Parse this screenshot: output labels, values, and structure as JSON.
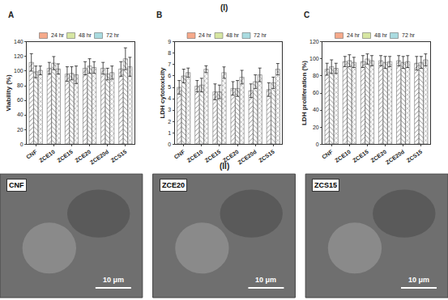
{
  "section_labels": [
    "(I)",
    "(II)"
  ],
  "chart_data": [
    {
      "type": "bar",
      "title": "A",
      "y_label": "Viability (%)",
      "categories": [
        "CNF",
        "ZCE10",
        "ZCE15",
        "ZCE20",
        "ZCE20d",
        "ZCS15"
      ],
      "series": [
        {
          "name": "24 hr",
          "color": "#f6a98a",
          "values": [
            112,
            104,
            96,
            104,
            104,
            103
          ],
          "errors": [
            12,
            8,
            10,
            9,
            8,
            10
          ]
        },
        {
          "name": "48 hr",
          "color": "#d6e6a2",
          "values": [
            99,
            111,
            97,
            107,
            96,
            117
          ],
          "errors": [
            8,
            9,
            9,
            10,
            8,
            15
          ]
        },
        {
          "name": "72 hr",
          "color": "#a9dbe0",
          "values": [
            101,
            103,
            95,
            105,
            98,
            106
          ],
          "errors": [
            6,
            7,
            12,
            8,
            9,
            13
          ]
        }
      ],
      "ylim": [
        0,
        140
      ],
      "yticks": [
        0,
        20,
        40,
        60,
        80,
        100,
        120,
        140
      ],
      "grid": false,
      "legend": "top"
    },
    {
      "type": "bar",
      "title": "B",
      "y_label": "LDH cytotoxicity",
      "categories": [
        "CNF",
        "ZCE10",
        "ZCE15",
        "ZCE20",
        "ZCE20d",
        "ZCS15"
      ],
      "series": [
        {
          "name": "24 hr",
          "color": "#f6a98a",
          "values": [
            5.0,
            5.1,
            4.6,
            4.9,
            4.7,
            4.8
          ],
          "errors": [
            0.6,
            0.5,
            0.7,
            0.6,
            0.6,
            0.6
          ]
        },
        {
          "name": "48 hr",
          "color": "#d6e6a2",
          "values": [
            6.0,
            5.2,
            4.6,
            4.9,
            5.5,
            5.4
          ],
          "errors": [
            0.6,
            0.6,
            0.6,
            0.7,
            0.6,
            0.5
          ]
        },
        {
          "name": "72 hr",
          "color": "#a9dbe0",
          "values": [
            6.3,
            6.6,
            6.3,
            5.9,
            6.1,
            6.6
          ],
          "errors": [
            0.4,
            0.3,
            0.5,
            0.6,
            0.6,
            0.5
          ]
        }
      ],
      "ylim": [
        0,
        9
      ],
      "yticks": [
        0,
        1,
        2,
        3,
        4,
        5,
        6,
        7,
        8,
        9
      ],
      "grid": false,
      "legend": "top"
    },
    {
      "type": "bar",
      "title": "C",
      "y_label": "LDH proliferation (%)",
      "categories": [
        "CNF",
        "ZCE10",
        "ZCE15",
        "ZCE20",
        "ZCE20d",
        "ZCS15"
      ],
      "series": [
        {
          "name": "24 hr",
          "color": "#f6a98a",
          "values": [
            88,
            97,
            97,
            98,
            98,
            95
          ],
          "errors": [
            7,
            6,
            7,
            6,
            6,
            8
          ]
        },
        {
          "name": "48 hr",
          "color": "#d6e6a2",
          "values": [
            91,
            98,
            100,
            96,
            96,
            96
          ],
          "errors": [
            8,
            7,
            6,
            7,
            7,
            7
          ]
        },
        {
          "name": "72 hr",
          "color": "#a9dbe0",
          "values": [
            89,
            96,
            98,
            97,
            97,
            99
          ],
          "errors": [
            6,
            6,
            6,
            6,
            7,
            7
          ]
        }
      ],
      "ylim": [
        0,
        120
      ],
      "yticks": [
        0,
        20,
        40,
        60,
        80,
        100,
        120
      ],
      "grid": false,
      "legend": "top"
    }
  ],
  "images": [
    {
      "label": "CNF",
      "scale_bar": "10 μm"
    },
    {
      "label": "ZCE20",
      "scale_bar": "10 μm"
    },
    {
      "label": "ZCS15",
      "scale_bar": "10 μm"
    }
  ]
}
